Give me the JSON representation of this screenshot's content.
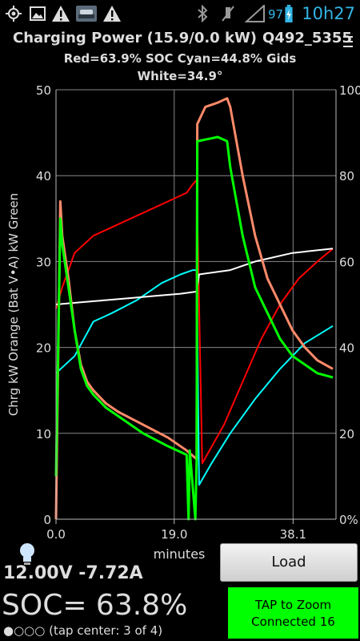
{
  "status_bar": {
    "icons": [
      "gps-icon",
      "image-icon",
      "warning-icon",
      "car-icon",
      "warning-icon",
      "bluetooth-icon",
      "mute-icon",
      "signal-icon",
      "battery-icon"
    ],
    "battery_pct": "97",
    "time": "10h27"
  },
  "header": {
    "title": "Charging Power (15.9/0.0 kW)",
    "vehicle_id": "Q492_5355",
    "subtitle_line1": "Red=63.9% SOC    Cyan=44.8% Gids",
    "subtitle_line2": "White=34.9°"
  },
  "chart_data": {
    "type": "line",
    "title": "",
    "xlabel": "minutes",
    "ylabel": "Chrg kW Orange  (Bat V•A) kW Green",
    "x_ticks": [
      "0.0",
      "19.0",
      "38.1"
    ],
    "xlim": [
      0,
      45
    ],
    "ylim_left": [
      0,
      50
    ],
    "y_ticks_left": [
      "0",
      "10",
      "20",
      "30",
      "40",
      "50"
    ],
    "ylim_right": [
      0,
      100
    ],
    "y_ticks_right": [
      "0%",
      "20",
      "40",
      "60",
      "80",
      "100"
    ],
    "grid": true,
    "series": [
      {
        "color": "#ff0000",
        "axis": "right",
        "x": [
          0,
          1,
          3,
          6,
          12,
          18,
          21,
          22,
          22.6,
          23.5,
          27,
          30,
          33,
          36,
          39,
          42,
          44.5
        ],
        "y": [
          49,
          54,
          62,
          66,
          70,
          74,
          76,
          78,
          79,
          13,
          22,
          32,
          42,
          50,
          56,
          60,
          63
        ]
      },
      {
        "color": "#00ffff",
        "axis": "right",
        "x": [
          0,
          3,
          6,
          9,
          13,
          17,
          20,
          22,
          22.6,
          23,
          25,
          28,
          32,
          36,
          40,
          44.5
        ],
        "y": [
          34,
          38,
          46,
          48,
          51,
          55,
          57,
          58,
          58,
          8,
          13,
          20,
          28,
          35,
          41,
          45
        ]
      },
      {
        "color": "#ffffff",
        "axis": "right",
        "x": [
          0,
          4,
          8,
          12,
          16,
          20,
          22.6,
          23,
          28,
          32,
          38,
          44.5
        ],
        "y": [
          50,
          50.5,
          51,
          51.5,
          52,
          52.5,
          53,
          57,
          58,
          60,
          62,
          63
        ]
      },
      {
        "color": "#ff8a6a",
        "axis": "left",
        "x": [
          0,
          0.7,
          1,
          2,
          3,
          4,
          5,
          6,
          8,
          10,
          14,
          18,
          21,
          22.6,
          22.7,
          24,
          26,
          27.5,
          28,
          30,
          32,
          34,
          36,
          38,
          40,
          42,
          44.5
        ],
        "y": [
          0,
          37,
          33,
          28,
          22,
          18,
          16,
          15,
          13.5,
          12.5,
          11,
          9.5,
          8,
          7,
          46,
          48,
          48.5,
          49,
          48,
          40,
          33,
          28,
          25,
          22,
          20,
          18.5,
          17.5
        ]
      },
      {
        "color": "#00ff00",
        "axis": "left",
        "x": [
          0,
          0.7,
          1,
          2,
          3,
          4,
          5,
          6,
          8,
          10,
          14,
          18,
          21,
          21.3,
          21.5,
          22.4,
          22.6,
          22.7,
          24,
          26,
          27.5,
          28,
          30,
          32,
          34,
          36,
          38,
          40,
          42,
          44.5
        ],
        "y": [
          5,
          35,
          32,
          27,
          22,
          17.5,
          15.5,
          14.5,
          13,
          12,
          10,
          8.5,
          7.5,
          0,
          8,
          0,
          7,
          44,
          44.2,
          44.5,
          44,
          41,
          33,
          27,
          24,
          21,
          19,
          18,
          17,
          16.5
        ]
      }
    ]
  },
  "readouts": {
    "voltage_current": "12.00V -7.72A",
    "soc": "SOC= 63.8%",
    "tap_center": "(tap center: 3 of 4)"
  },
  "buttons": {
    "load": "Load",
    "tap_line1": "TAP to Zoom",
    "tap_line2": "Connected 16"
  }
}
